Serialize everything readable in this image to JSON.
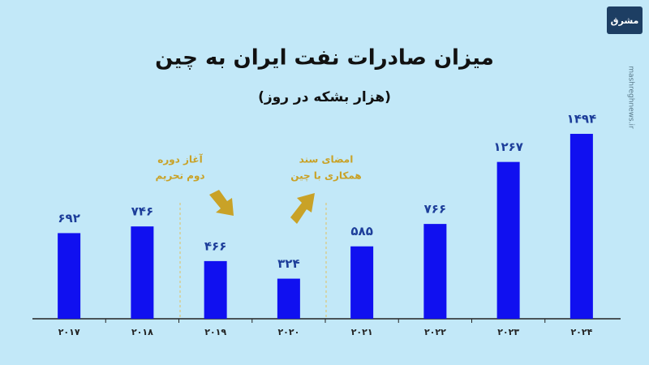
{
  "chart_data": {
    "type": "bar",
    "title": "میزان صادرات نفت ایران به چین",
    "subtitle": "(هزار بشکه در روز)",
    "categories": [
      "۲۰۱۷",
      "۲۰۱۸",
      "۲۰۱۹",
      "۲۰۲۰",
      "۲۰۲۱",
      "۲۰۲۲",
      "۲۰۲۳",
      "۲۰۲۴"
    ],
    "values": [
      692,
      746,
      466,
      324,
      585,
      766,
      1267,
      1494
    ],
    "value_labels": [
      "۶۹۲",
      "۷۴۶",
      "۴۶۶",
      "۳۲۴",
      "۵۸۵",
      "۷۶۶",
      "۱۲۶۷",
      "۱۴۹۴"
    ],
    "color": "#1010f0",
    "annotations": [
      [
        "آغاز دوره",
        "دوم تحریم"
      ],
      [
        "امضای سند",
        "همکاری با چین"
      ]
    ],
    "logo": "مشرق",
    "watermark": "mashreghnews.ir"
  }
}
